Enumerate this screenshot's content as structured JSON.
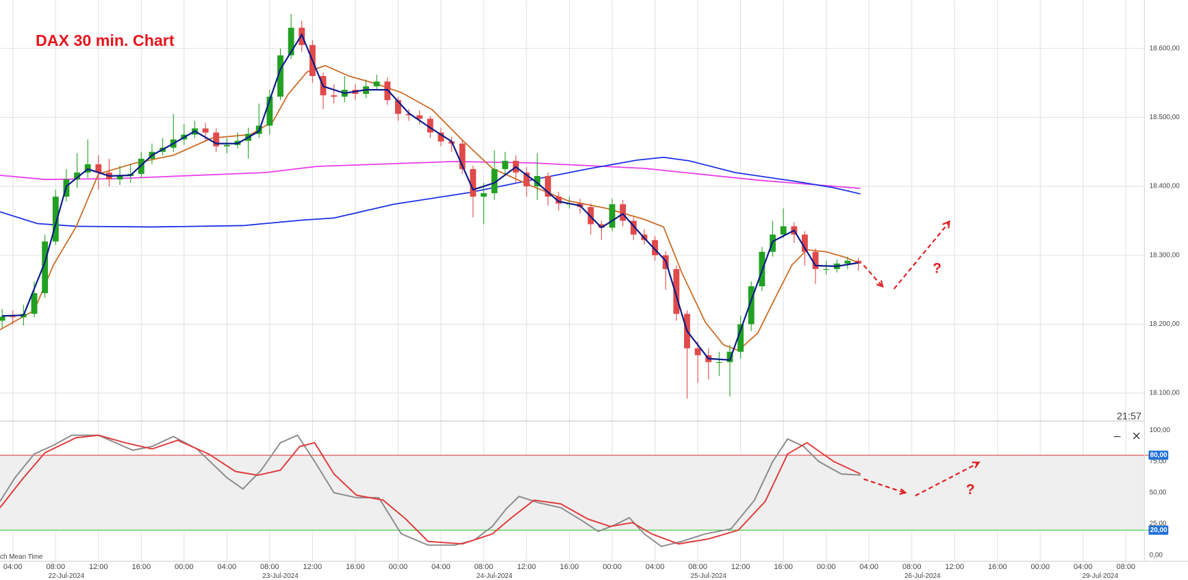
{
  "chart_data": [
    {
      "type": "candlestick",
      "title": "DAX 30 min. Chart",
      "up_color": "#22a022",
      "down_color": "#e04a4a",
      "open": [
        18205,
        18211,
        18210,
        18215,
        18245,
        18320,
        18385,
        18410,
        18420,
        18432,
        18420,
        18410,
        18415,
        18418,
        18440,
        18450,
        18456,
        18468,
        18475,
        18484,
        18478,
        18458,
        18460,
        18466,
        18476,
        18488,
        18530,
        18590,
        18630,
        18605,
        18560,
        18532,
        18530,
        18540,
        18534,
        18545,
        18552,
        18525,
        18505,
        18503,
        18498,
        18478,
        18465,
        18462,
        18425,
        18385,
        18390,
        18425,
        18437,
        18420,
        18400,
        18415,
        18385,
        18375,
        18375,
        18370,
        18345,
        18340,
        18374,
        18350,
        18330,
        18322,
        18300,
        18280,
        18215,
        18165,
        18155,
        18145,
        18145,
        18160,
        18200,
        18255,
        18305,
        18330,
        18342,
        18330,
        18305,
        18280,
        18280,
        18288,
        18292
      ],
      "high": [
        18222,
        18220,
        18228,
        18262,
        18330,
        18395,
        18425,
        18448,
        18468,
        18445,
        18440,
        18430,
        18432,
        18450,
        18462,
        18470,
        18505,
        18490,
        18495,
        18492,
        18484,
        18470,
        18478,
        18485,
        18520,
        18540,
        18600,
        18650,
        18640,
        18612,
        18565,
        18548,
        18560,
        18548,
        18555,
        18562,
        18558,
        18530,
        18512,
        18510,
        18502,
        18485,
        18472,
        18468,
        18430,
        18405,
        18452,
        18450,
        18445,
        18428,
        18448,
        18420,
        18392,
        18385,
        18382,
        18375,
        18350,
        18382,
        18380,
        18355,
        18338,
        18328,
        18306,
        18285,
        18220,
        18175,
        18165,
        18160,
        18170,
        18212,
        18262,
        18312,
        18350,
        18368,
        18348,
        18335,
        18310,
        18292,
        18294,
        18298,
        18296
      ],
      "low": [
        18195,
        18200,
        18198,
        18210,
        18238,
        18315,
        18378,
        18398,
        18412,
        18395,
        18400,
        18402,
        18405,
        18412,
        18432,
        18445,
        18450,
        18460,
        18470,
        18465,
        18450,
        18448,
        18455,
        18440,
        18470,
        18475,
        18525,
        18585,
        18595,
        18550,
        18512,
        18520,
        18522,
        18525,
        18528,
        18540,
        18518,
        18495,
        18495,
        18490,
        18470,
        18458,
        18450,
        18418,
        18355,
        18345,
        18380,
        18418,
        18405,
        18385,
        18380,
        18372,
        18365,
        18368,
        18360,
        18330,
        18322,
        18335,
        18342,
        18322,
        18315,
        18292,
        18250,
        18205,
        18092,
        18115,
        18120,
        18125,
        18095,
        18150,
        18190,
        18248,
        18298,
        18325,
        18318,
        18285,
        18258,
        18272,
        18275,
        18280,
        18278
      ],
      "close": [
        18211,
        18210,
        18215,
        18245,
        18320,
        18385,
        18410,
        18420,
        18432,
        18420,
        18410,
        18415,
        18418,
        18440,
        18450,
        18456,
        18468,
        18475,
        18484,
        18478,
        18458,
        18460,
        18466,
        18476,
        18488,
        18530,
        18590,
        18630,
        18605,
        18560,
        18532,
        18530,
        18540,
        18534,
        18545,
        18552,
        18525,
        18505,
        18503,
        18498,
        18478,
        18465,
        18462,
        18425,
        18385,
        18390,
        18425,
        18437,
        18420,
        18400,
        18415,
        18385,
        18375,
        18375,
        18370,
        18345,
        18340,
        18374,
        18350,
        18330,
        18322,
        18300,
        18280,
        18215,
        18165,
        18155,
        18145,
        18145,
        18160,
        18200,
        18255,
        18305,
        18330,
        18342,
        18330,
        18305,
        18280,
        18280,
        18288,
        18292,
        18288
      ],
      "series": [
        {
          "color": "#e83ce8",
          "x": [
            -0.2,
            4,
            10.4,
            24.6,
            29.5,
            42.3,
            49.4,
            60,
            70.6,
            80.2
          ],
          "values": [
            18416,
            18410,
            18411,
            18420,
            18429,
            18436,
            18434,
            18426,
            18409,
            18397
          ]
        },
        {
          "color": "#1c2fe6",
          "x": [
            -0.2,
            3.3,
            6.9,
            14,
            22.5,
            28.1,
            31,
            36.6,
            43.7,
            49.4,
            55,
            59.3,
            61.8,
            64.2,
            68.5,
            74.2,
            77.7,
            80.2
          ],
          "values": [
            18363,
            18346,
            18342,
            18341,
            18343,
            18351,
            18354,
            18374,
            18391,
            18409,
            18426,
            18438,
            18442,
            18437,
            18420,
            18407,
            18398,
            18389
          ]
        },
        {
          "color": "#cc6a22",
          "x": [
            -0.2,
            3,
            4.8,
            6.9,
            9,
            12.5,
            16,
            19.6,
            23.2,
            25.3,
            26.7,
            28.5,
            30.2,
            32.4,
            34.9,
            37.3,
            40.2,
            43,
            45.8,
            49.4,
            52.9,
            56.5,
            60,
            61.8,
            63.5,
            65.7,
            67.4,
            68.8,
            70.6,
            72,
            73.8,
            75.2,
            77,
            78.8,
            80.2
          ],
          "values": [
            18192,
            18220,
            18286,
            18341,
            18418,
            18434,
            18445,
            18470,
            18475,
            18494,
            18533,
            18566,
            18575,
            18560,
            18549,
            18536,
            18511,
            18467,
            18426,
            18401,
            18379,
            18368,
            18352,
            18341,
            18275,
            18203,
            18170,
            18162,
            18187,
            18231,
            18286,
            18308,
            18305,
            18297,
            18288
          ]
        },
        {
          "color": "#0b1a8a",
          "x": [
            0,
            2,
            4,
            6,
            8,
            10,
            12,
            14,
            16,
            18,
            20,
            22,
            24,
            26,
            28,
            30,
            32,
            34,
            36,
            38,
            40,
            42,
            44,
            46,
            48,
            50,
            52,
            54,
            56,
            58,
            60,
            62,
            64,
            66,
            68,
            70,
            72,
            74,
            76,
            78,
            80
          ],
          "values": [
            18212,
            18213,
            18290,
            18400,
            18425,
            18415,
            18416,
            18445,
            18462,
            18480,
            18462,
            18462,
            18480,
            18570,
            18620,
            18545,
            18535,
            18540,
            18540,
            18506,
            18485,
            18465,
            18395,
            18405,
            18428,
            18405,
            18378,
            18372,
            18340,
            18360,
            18325,
            18292,
            18190,
            18150,
            18148,
            18235,
            18320,
            18336,
            18285,
            18284,
            18289
          ]
        }
      ],
      "ylim": [
        18060,
        18670
      ],
      "yticks": [
        {
          "value": 18100,
          "label": "18.100,00"
        },
        {
          "value": 18200,
          "label": "18.200,00"
        },
        {
          "value": 18300,
          "label": "18.300,00"
        },
        {
          "value": 18400,
          "label": "18.400,00"
        },
        {
          "value": 18500,
          "label": "18.500,00"
        },
        {
          "value": 18600,
          "label": "18.600,00"
        }
      ],
      "grid": true
    },
    {
      "type": "line",
      "series": [
        {
          "color": "#8c8c8c",
          "x": [
            -0.2,
            1.2,
            3,
            4.8,
            6.5,
            9,
            12.2,
            14,
            16,
            18.2,
            21,
            22.5,
            24.2,
            26,
            27.6,
            29.2,
            31,
            33.1,
            35.2,
            37.3,
            39.8,
            42.3,
            44.1,
            45.8,
            47.1,
            48.3,
            50.1,
            52.2,
            54.3,
            55.7,
            57.2,
            58.6,
            60,
            61.6,
            63.5,
            65.7,
            68.1,
            70.3,
            72,
            73.4,
            74.9,
            76.3,
            78.4,
            80.2
          ],
          "values": [
            43,
            62,
            81,
            88,
            96,
            96,
            84,
            87,
            95,
            85,
            62,
            53,
            68,
            90,
            96,
            75,
            50,
            46,
            46,
            17,
            8,
            8,
            12,
            23,
            37,
            47,
            42,
            38,
            27,
            19,
            24,
            30,
            17,
            7,
            11,
            17,
            21,
            44,
            75,
            93,
            87,
            75,
            65,
            64
          ]
        },
        {
          "color": "#e03c3c",
          "x": [
            -0.2,
            1.9,
            4,
            6.9,
            9,
            11.5,
            14,
            16.4,
            19.3,
            21.8,
            23.9,
            26,
            27.8,
            29.2,
            31,
            33.1,
            35.6,
            37.7,
            39.8,
            43,
            45.8,
            47.6,
            49.7,
            52.2,
            54.7,
            56.8,
            58.9,
            60.7,
            63.2,
            66,
            68.8,
            71.3,
            73.4,
            75.2,
            77.7,
            80.2
          ],
          "values": [
            38,
            61,
            82,
            94,
            96,
            90,
            85,
            92,
            81,
            67,
            64,
            68,
            87,
            90,
            65,
            48,
            44,
            29,
            11,
            9,
            17,
            30,
            44,
            41,
            29,
            23,
            26,
            17,
            9,
            13,
            20,
            43,
            81,
            90,
            75,
            65
          ]
        }
      ],
      "levels": [
        {
          "value": 80,
          "label": "80,00",
          "color": "#e04040"
        },
        {
          "value": 20,
          "label": "20,00",
          "color": "#30c830"
        }
      ],
      "band_color": "#efefef",
      "ylim": [
        -4,
        104
      ],
      "yticks": [
        {
          "value": 0,
          "label": "0,00"
        },
        {
          "value": 25,
          "label": "25,00"
        },
        {
          "value": 50,
          "label": "50,00"
        },
        {
          "value": 75,
          "label": "75,00"
        },
        {
          "value": 100,
          "label": "100,00"
        }
      ],
      "xlim": [
        -0.2,
        106.7
      ],
      "xticks": [
        {
          "value": 1,
          "label": "04:00"
        },
        {
          "value": 5,
          "label": "08:00"
        },
        {
          "value": 9,
          "label": "12:00"
        },
        {
          "value": 13,
          "label": "16:00"
        },
        {
          "value": 17,
          "label": "00:00"
        },
        {
          "value": 21,
          "label": "04:00"
        },
        {
          "value": 25,
          "label": "08:00"
        },
        {
          "value": 29,
          "label": "12:00"
        },
        {
          "value": 33,
          "label": "16:00"
        },
        {
          "value": 37,
          "label": "00:00"
        },
        {
          "value": 41,
          "label": "04:00"
        },
        {
          "value": 45,
          "label": "08:00"
        },
        {
          "value": 49,
          "label": "12:00"
        },
        {
          "value": 53,
          "label": "16:00"
        },
        {
          "value": 57,
          "label": "00:00"
        },
        {
          "value": 61,
          "label": "04:00"
        },
        {
          "value": 65,
          "label": "08:00"
        },
        {
          "value": 69,
          "label": "12:00"
        },
        {
          "value": 73,
          "label": "16:00"
        },
        {
          "value": 77,
          "label": "00:00"
        },
        {
          "value": 81,
          "label": "04:00"
        },
        {
          "value": 85,
          "label": "08:00"
        },
        {
          "value": 89,
          "label": "12:00"
        },
        {
          "value": 93,
          "label": "16:00"
        },
        {
          "value": 97,
          "label": "00:00"
        },
        {
          "value": 101,
          "label": "04:00"
        },
        {
          "value": 105,
          "label": "08:00"
        }
      ],
      "date_ticks": [
        {
          "value": 6,
          "label": "22-Jul-2024"
        },
        {
          "value": 26,
          "label": "23-Jul-2024"
        },
        {
          "value": 46,
          "label": "24-Jul-2024"
        },
        {
          "value": 66,
          "label": "25-Jul-2024"
        },
        {
          "value": 86,
          "label": "26-Jul-2024"
        },
        {
          "value": 102.6,
          "label": "29-Jul-2024"
        }
      ],
      "grid": true
    }
  ],
  "annotations": {
    "clock": "21:57",
    "timezone": "ch Mean Time",
    "question_marks": [
      "?",
      "?"
    ]
  }
}
